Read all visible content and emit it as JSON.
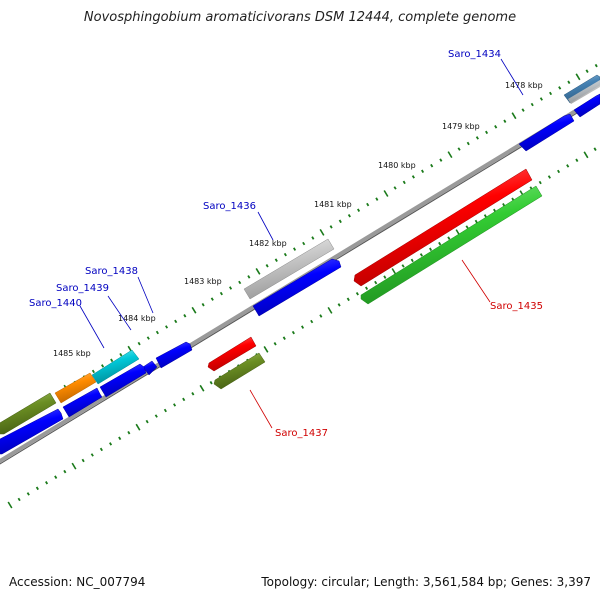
{
  "title": "Novosphingobium aromaticivorans DSM 12444, complete genome",
  "footer": {
    "accession": "Accession: NC_007794",
    "summary": "Topology: circular; Length: 3,561,584 bp; Genes: 3,397"
  },
  "colors": {
    "backbone": "#8a8a8a",
    "tick": "#1a7a1a",
    "label_forward": "#0000c0",
    "label_reverse": "#d00000",
    "gene_blue": "#0000ff",
    "gene_red": "#ff0000",
    "gene_green": "#33cc33",
    "gene_olive": "#6b8e23",
    "gene_gray": "#c8c8c8",
    "gene_orange": "#ff8c00",
    "gene_cyan": "#00c8d8"
  },
  "scale_labels": [
    "1478 kbp",
    "1479 kbp",
    "1480 kbp",
    "1481 kbp",
    "1482 kbp",
    "1483 kbp",
    "1484 kbp",
    "1485 kbp"
  ],
  "gene_labels": {
    "saro_1434": "Saro_1434",
    "saro_1435": "Saro_1435",
    "saro_1436": "Saro_1436",
    "saro_1437": "Saro_1437",
    "saro_1438": "Saro_1438",
    "saro_1439": "Saro_1439",
    "saro_1440": "Saro_1440"
  }
}
